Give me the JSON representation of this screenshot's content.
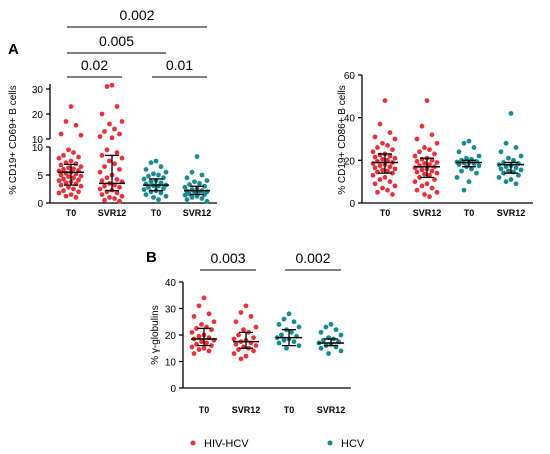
{
  "colors": {
    "hiv_hcv": "#e8323a",
    "hcv": "#158a8f",
    "median": "#000000"
  },
  "legend": [
    {
      "label": "HIV-HCV",
      "color": "#e8323a"
    },
    {
      "label": "HCV",
      "color": "#158a8f"
    }
  ],
  "chart_data": [
    {
      "id": "A-left",
      "panel_label": "A",
      "type": "scatter",
      "ylabel": "% CD19+ CD69+ B cells",
      "yaxis": {
        "scale": "broken",
        "lower_range": [
          0,
          10
        ],
        "upper_range": [
          10,
          30
        ],
        "lower_ticks": [
          "0",
          "5",
          "10"
        ],
        "upper_ticks": [
          "10",
          "20",
          "30"
        ]
      },
      "categories": [
        "T0",
        "SVR12",
        "T0",
        "SVR12"
      ],
      "series": [
        {
          "name": "HIV-HCV",
          "color": "#e8323a",
          "median": 5.5,
          "q1": 3.2,
          "q3": 6.9,
          "values": [
            23,
            17,
            15.5,
            12,
            11.5,
            9.5,
            9,
            8.5,
            8.2,
            8,
            7.5,
            7.2,
            7,
            6.8,
            6.5,
            6.3,
            6.1,
            6,
            5.8,
            5.7,
            5.5,
            5.3,
            5.2,
            5,
            4.8,
            4.7,
            4.5,
            4.3,
            4.1,
            4,
            3.8,
            3.6,
            3.4,
            3.2,
            3,
            2.8,
            2.5,
            2.2,
            2,
            1.8,
            1.5,
            1.2,
            1
          ]
        },
        {
          "name": "SVR12",
          "color": "#e8323a",
          "median": 3.5,
          "q1": 2.2,
          "q3": 8.5,
          "values": [
            31.5,
            31,
            23,
            20,
            17,
            16,
            14,
            13,
            12,
            11,
            10.5,
            9.5,
            9,
            8.5,
            8,
            7.5,
            7,
            6.5,
            6,
            5.5,
            5,
            4.5,
            4.2,
            4,
            3.8,
            3.5,
            3.2,
            3,
            2.8,
            2.5,
            2.3,
            2,
            1.8,
            1.5,
            1.2,
            1,
            0.8,
            0.5,
            0.3
          ]
        },
        {
          "name": "T0",
          "color": "#158a8f",
          "median": 3.2,
          "q1": 2.2,
          "q3": 4.3,
          "values": [
            7.5,
            7.2,
            6.5,
            6,
            5.5,
            5.2,
            5,
            4.8,
            4.5,
            4.3,
            4,
            3.8,
            3.6,
            3.4,
            3.2,
            3.1,
            3,
            2.8,
            2.6,
            2.4,
            2.2,
            2,
            1.8,
            1.5,
            1.2,
            1,
            0.6
          ]
        },
        {
          "name": "SVR12",
          "color": "#158a8f",
          "median": 2.2,
          "q1": 1.5,
          "q3": 3.0,
          "values": [
            8.3,
            5.5,
            5,
            4.5,
            4,
            3.8,
            3.5,
            3.3,
            3,
            2.8,
            2.6,
            2.4,
            2.2,
            2.1,
            2,
            1.9,
            1.8,
            1.6,
            1.5,
            1.4,
            1.2,
            1,
            0.8,
            0.6,
            0.3
          ]
        }
      ],
      "significance": [
        {
          "label": "0.02",
          "from": 0,
          "to": 1
        },
        {
          "label": "0.01",
          "from": 2,
          "to": 3
        },
        {
          "label": "0.005",
          "from": 0,
          "to": 2
        },
        {
          "label": "0.002",
          "from": 0,
          "to": 3
        }
      ]
    },
    {
      "id": "A-right",
      "type": "scatter",
      "ylabel": "% CD19+ CD86+ B cells",
      "ylim": [
        0,
        60
      ],
      "yticks": [
        0,
        20,
        40,
        60
      ],
      "categories": [
        "T0",
        "SVR12",
        "T0",
        "SVR12"
      ],
      "series": [
        {
          "color": "#e8323a",
          "median": 19,
          "q1": 14,
          "q3": 23,
          "values": [
            48,
            37,
            33,
            31,
            30,
            28,
            27,
            26,
            25,
            24,
            23,
            22.5,
            22,
            21.5,
            21,
            20.5,
            20,
            19.5,
            19,
            18.5,
            18,
            17.5,
            17,
            16.5,
            16,
            15.5,
            15,
            14.5,
            14,
            13,
            12,
            11,
            10,
            9,
            8,
            7,
            6,
            5,
            4
          ]
        },
        {
          "color": "#e8323a",
          "median": 17,
          "q1": 12,
          "q3": 21,
          "values": [
            48,
            36,
            32,
            30,
            28,
            26,
            25,
            24,
            23,
            22,
            21,
            20.5,
            20,
            19.5,
            19,
            18.5,
            18,
            17.5,
            17,
            16.5,
            16,
            15.5,
            15,
            14.5,
            14,
            13.5,
            13,
            12,
            11,
            10,
            9,
            8,
            7,
            6,
            5,
            4,
            3
          ]
        },
        {
          "color": "#158a8f",
          "median": 19,
          "q1": 17,
          "q3": 20,
          "values": [
            29,
            28,
            26,
            24,
            22,
            21,
            20.5,
            20,
            19.5,
            19.2,
            19,
            18.8,
            18.5,
            18,
            17.5,
            17,
            16,
            15,
            14,
            12,
            10,
            6
          ]
        },
        {
          "color": "#158a8f",
          "median": 18,
          "q1": 14,
          "q3": 19,
          "values": [
            42,
            28,
            26,
            24,
            22,
            21,
            20,
            19,
            18.5,
            18,
            17.5,
            17,
            16.5,
            16,
            15.5,
            15,
            14.5,
            14,
            13,
            12,
            11,
            10,
            9
          ]
        }
      ]
    },
    {
      "id": "B",
      "panel_label": "B",
      "type": "scatter",
      "ylabel": "% γ-globulins",
      "ylim": [
        0,
        40
      ],
      "yticks": [
        0,
        10,
        20,
        30,
        40
      ],
      "categories": [
        "T0",
        "SVR12",
        "T0",
        "SVR12"
      ],
      "series": [
        {
          "color": "#e8323a",
          "median": 18.5,
          "q1": 16,
          "q3": 22.5,
          "values": [
            34,
            31,
            28,
            27,
            25,
            24,
            23,
            22.5,
            22,
            21,
            20,
            19.5,
            19,
            18.5,
            18,
            17.5,
            17,
            16.5,
            16,
            15.5,
            15,
            14.5,
            14,
            13
          ]
        },
        {
          "color": "#e8323a",
          "median": 17.5,
          "q1": 15,
          "q3": 21,
          "values": [
            31,
            28.5,
            27,
            25,
            23,
            22,
            21,
            20,
            19,
            18.5,
            18,
            17.5,
            17,
            16.5,
            16,
            15.5,
            15,
            14.5,
            14,
            13,
            12,
            11
          ]
        },
        {
          "color": "#158a8f",
          "median": 19,
          "q1": 16,
          "q3": 22,
          "values": [
            28,
            26,
            25,
            24,
            23,
            22,
            21,
            20,
            19.5,
            19,
            18.5,
            18,
            17.5,
            17,
            16,
            15
          ]
        },
        {
          "color": "#158a8f",
          "median": 17,
          "q1": 16,
          "q3": 18.5,
          "values": [
            24,
            23,
            22,
            21,
            20,
            19,
            18.5,
            18,
            17.5,
            17,
            16.5,
            16,
            15.5,
            15,
            14,
            13
          ]
        }
      ],
      "significance": [
        {
          "label": "0.003",
          "from": 0,
          "to": 1
        },
        {
          "label": "0.002",
          "from": 2,
          "to": 3
        }
      ]
    }
  ]
}
